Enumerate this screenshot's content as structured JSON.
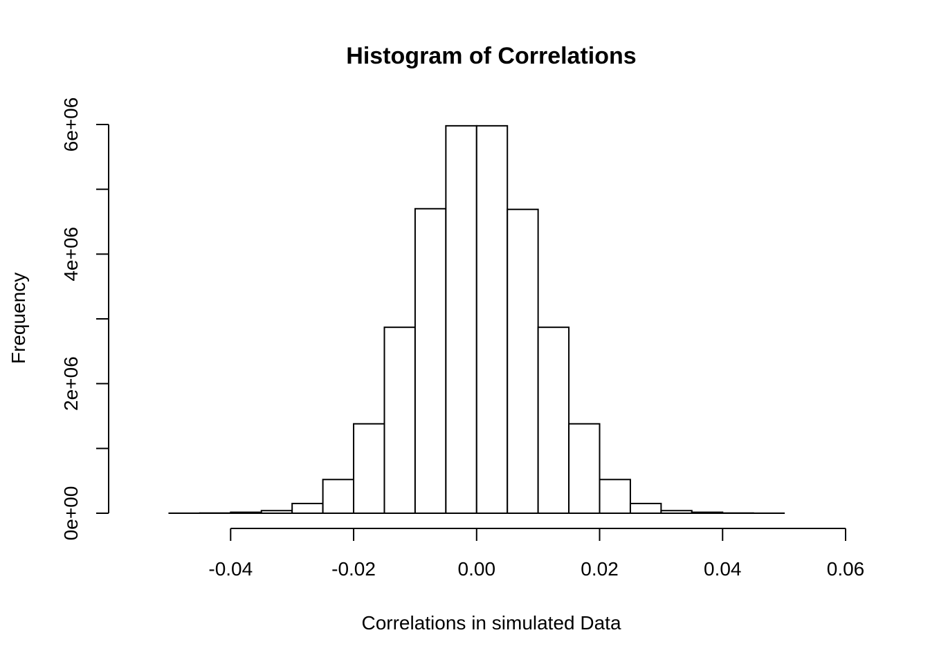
{
  "chart_data": {
    "type": "bar",
    "title": "Histogram of Correlations",
    "xlabel": "Correlations in simulated Data",
    "ylabel": "Frequency",
    "xlim": [
      -0.055,
      0.06
    ],
    "ylim": [
      0,
      6000000
    ],
    "x_ticks": [
      -0.04,
      -0.02,
      0.0,
      0.02,
      0.04,
      0.06
    ],
    "x_tick_labels": [
      "-0.04",
      "-0.02",
      "0.00",
      "0.02",
      "0.04",
      "0.06"
    ],
    "y_ticks": [
      0,
      1000000,
      2000000,
      3000000,
      4000000,
      5000000,
      6000000
    ],
    "y_tick_labels": [
      "0e+00",
      "",
      "2e+06",
      "",
      "4e+06",
      "",
      "6e+06"
    ],
    "bins": [
      {
        "start": -0.055,
        "end": -0.05,
        "count": 50
      },
      {
        "start": -0.05,
        "end": -0.045,
        "count": 500
      },
      {
        "start": -0.045,
        "end": -0.04,
        "count": 3000
      },
      {
        "start": -0.04,
        "end": -0.035,
        "count": 15000
      },
      {
        "start": -0.035,
        "end": -0.03,
        "count": 40000
      },
      {
        "start": -0.03,
        "end": -0.025,
        "count": 150000
      },
      {
        "start": -0.025,
        "end": -0.02,
        "count": 520000
      },
      {
        "start": -0.02,
        "end": -0.015,
        "count": 1380000
      },
      {
        "start": -0.015,
        "end": -0.01,
        "count": 2870000
      },
      {
        "start": -0.01,
        "end": -0.005,
        "count": 4700000
      },
      {
        "start": -0.005,
        "end": 0.0,
        "count": 5980000
      },
      {
        "start": 0.0,
        "end": 0.005,
        "count": 5980000
      },
      {
        "start": 0.005,
        "end": 0.01,
        "count": 4690000
      },
      {
        "start": 0.01,
        "end": 0.015,
        "count": 2870000
      },
      {
        "start": 0.015,
        "end": 0.02,
        "count": 1380000
      },
      {
        "start": 0.02,
        "end": 0.025,
        "count": 520000
      },
      {
        "start": 0.025,
        "end": 0.03,
        "count": 150000
      },
      {
        "start": 0.03,
        "end": 0.035,
        "count": 40000
      },
      {
        "start": 0.035,
        "end": 0.04,
        "count": 15000
      },
      {
        "start": 0.04,
        "end": 0.045,
        "count": 3000
      },
      {
        "start": 0.045,
        "end": 0.05,
        "count": 500
      },
      {
        "start": 0.05,
        "end": 0.055,
        "count": 50
      },
      {
        "start": 0.055,
        "end": 0.06,
        "count": 10
      }
    ],
    "grid": false,
    "legend": "none"
  }
}
